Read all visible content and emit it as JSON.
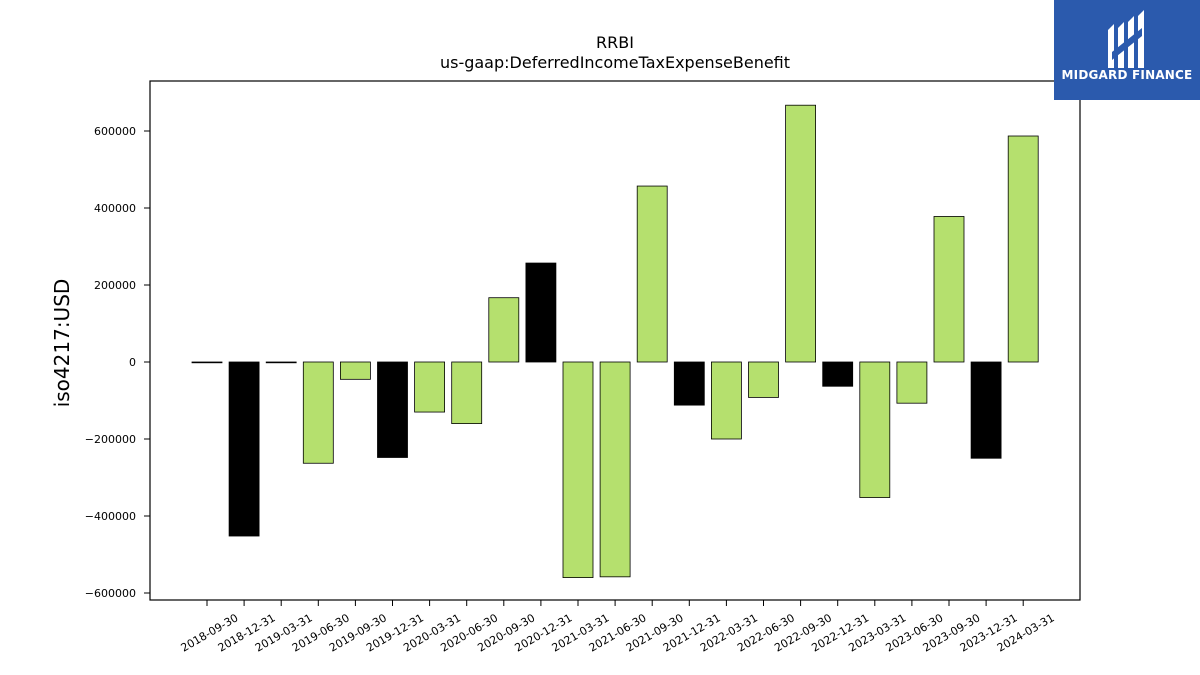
{
  "chart_data": {
    "type": "bar",
    "title": "RRBI",
    "subtitle": "us-gaap:DeferredIncomeTaxExpenseBenefit",
    "xlabel": "",
    "ylabel": "iso4217:USD",
    "categories": [
      "2018-09-30",
      "2018-12-31",
      "2019-03-31",
      "2019-06-30",
      "2019-09-30",
      "2019-12-31",
      "2020-03-31",
      "2020-06-30",
      "2020-09-30",
      "2020-12-31",
      "2021-03-31",
      "2021-06-30",
      "2021-09-30",
      "2021-12-31",
      "2022-03-31",
      "2022-06-30",
      "2022-09-30",
      "2022-12-31",
      "2023-03-31",
      "2023-06-30",
      "2023-09-30",
      "2023-12-31",
      "2024-03-31"
    ],
    "values": [
      0,
      -452000,
      0,
      -263000,
      -45000,
      -248000,
      -130000,
      -160000,
      167000,
      257000,
      -560000,
      -558000,
      457000,
      -112000,
      -200000,
      -92000,
      667000,
      -63000,
      -352000,
      -107000,
      378000,
      -250000,
      587000
    ],
    "highlight": [
      false,
      true,
      false,
      false,
      false,
      true,
      false,
      false,
      false,
      true,
      false,
      false,
      false,
      true,
      false,
      false,
      false,
      true,
      false,
      false,
      false,
      true,
      false
    ],
    "yticks": [
      -600000,
      -400000,
      -200000,
      0,
      200000,
      400000,
      600000
    ],
    "ylim": [
      -620000,
      730000
    ],
    "grid": false,
    "colors": {
      "bar": "#b5e06e",
      "highlight": "#000000",
      "edge": "#000000"
    }
  },
  "logo": {
    "text": "MIDGARD FINANCE",
    "bg": "#2b5aad"
  }
}
